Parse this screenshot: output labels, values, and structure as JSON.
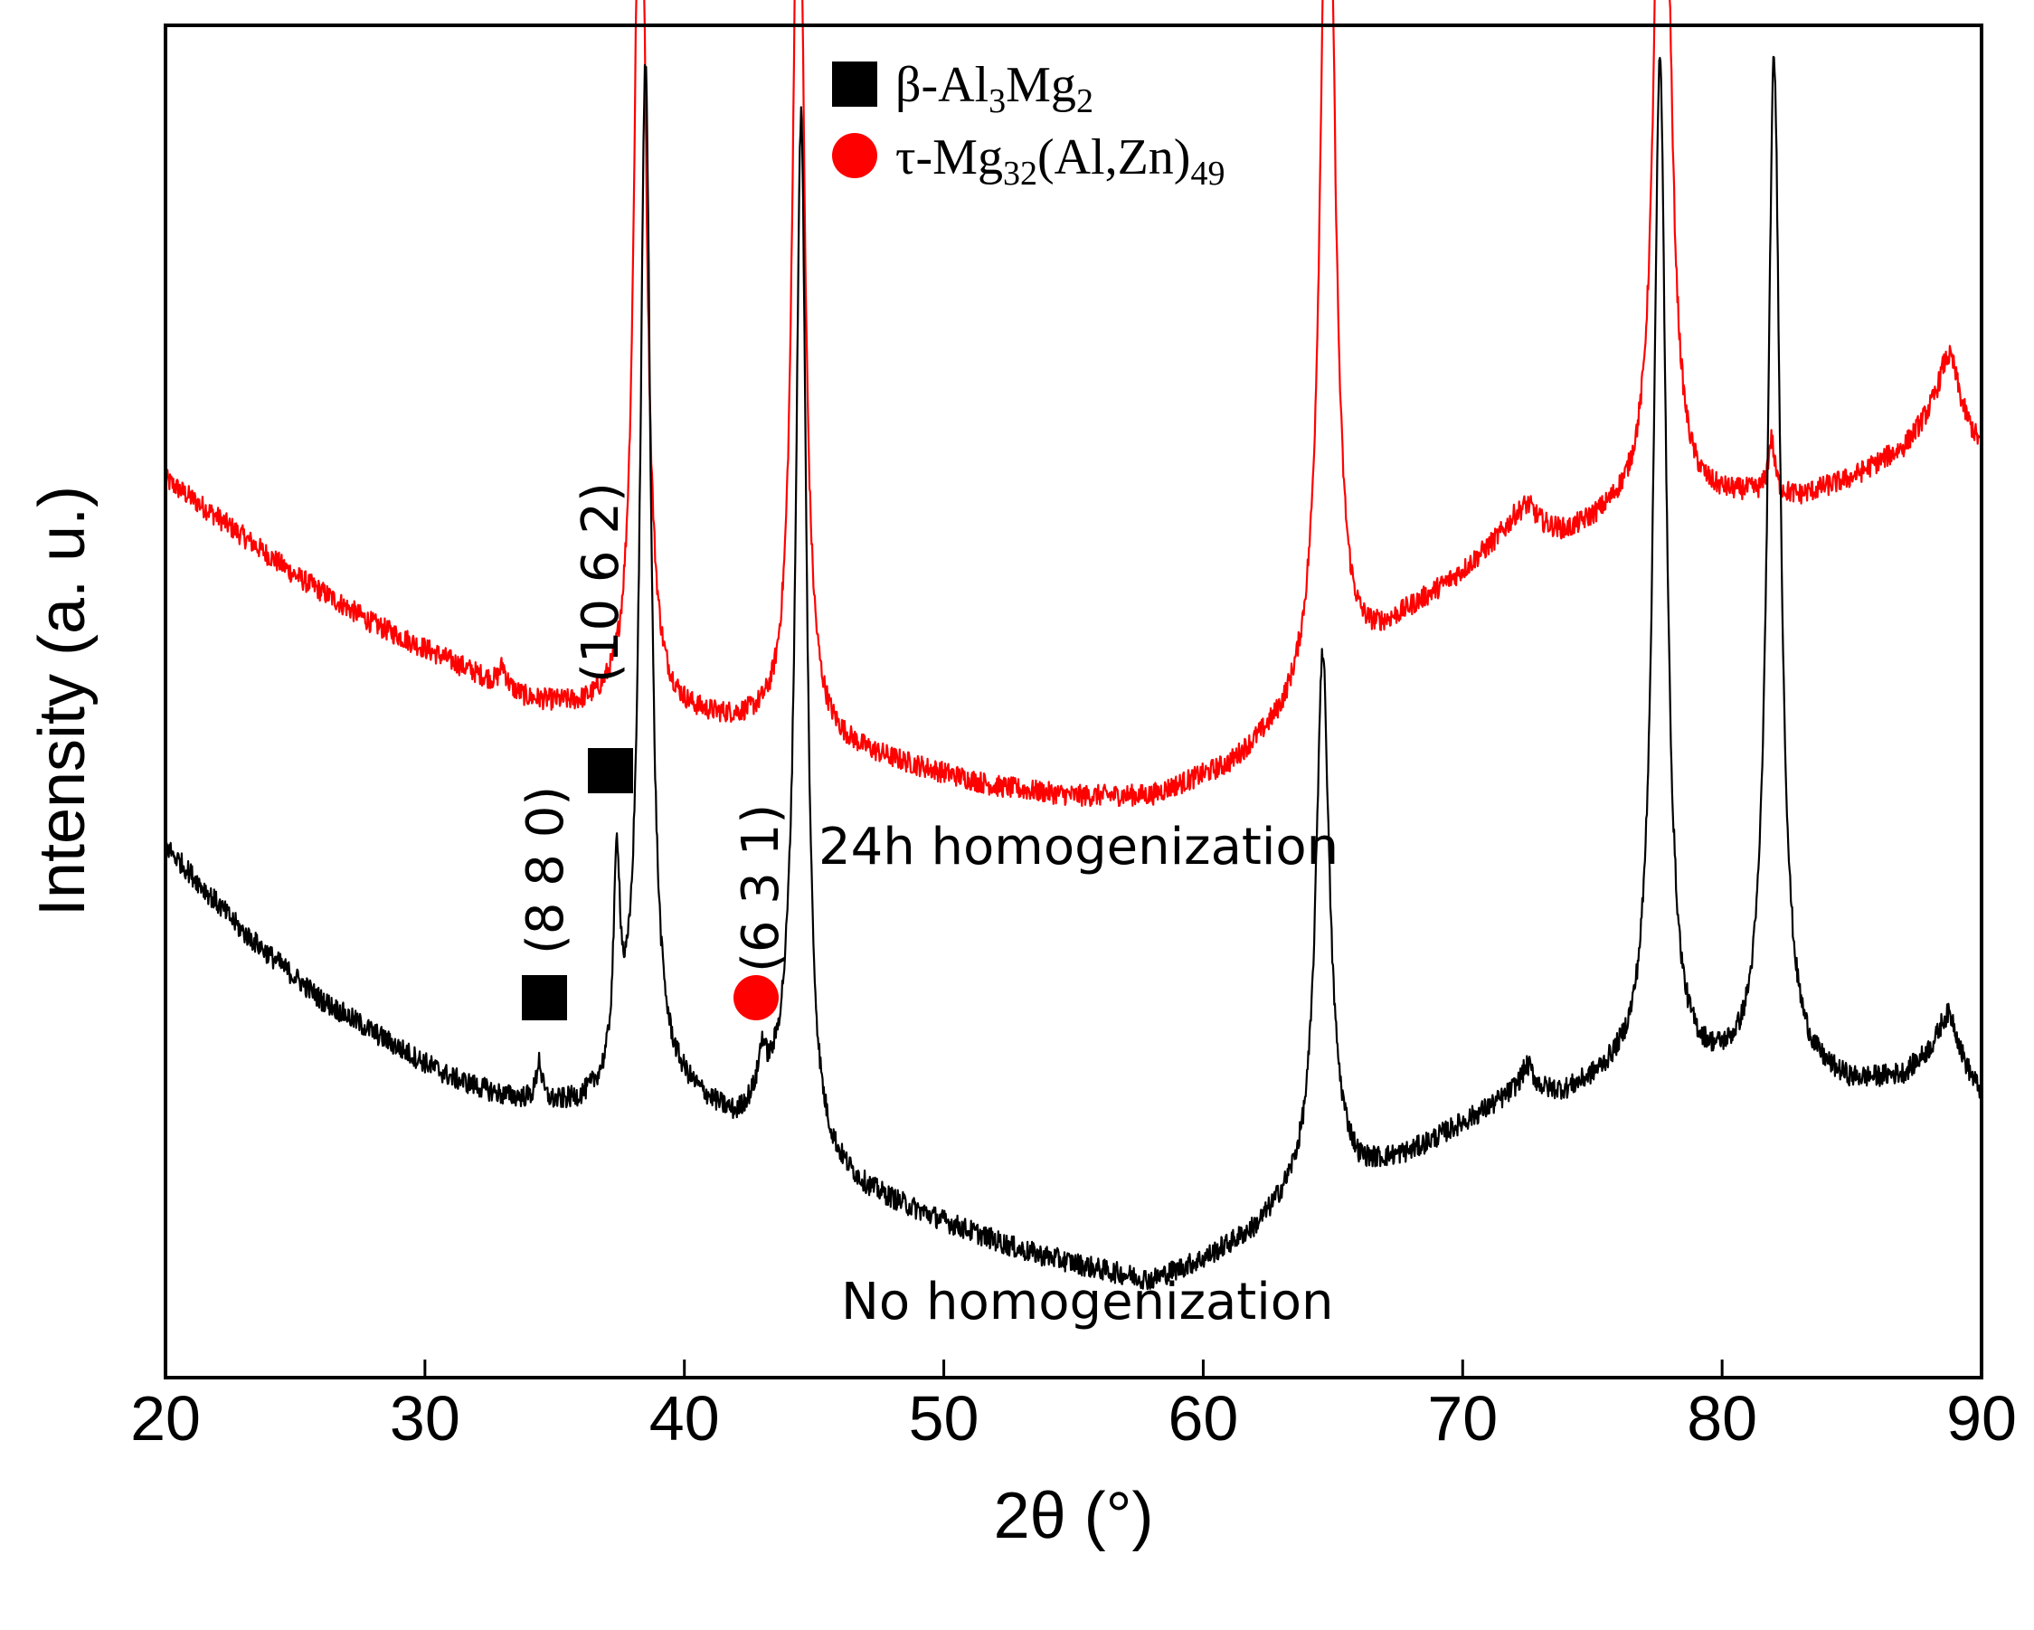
{
  "chart_data": {
    "type": "line",
    "title": "",
    "xlabel": "2θ (°)",
    "ylabel": "Intensity (a. u.)",
    "xlim": [
      20,
      90
    ],
    "ylim": [
      0,
      100
    ],
    "xticks": [
      20,
      30,
      40,
      50,
      60,
      70,
      80,
      90
    ],
    "xtick_labels": [
      "20",
      "30",
      "40",
      "50",
      "60",
      "70",
      "80",
      "90"
    ],
    "grid": false,
    "legend": [
      {
        "marker": "square",
        "color": "#000000",
        "text_parts": [
          "β-Al",
          "3",
          "Mg",
          "2"
        ]
      },
      {
        "marker": "circle",
        "color": "#ff0000",
        "text_parts": [
          "τ-Mg",
          "32",
          "(Al,Zn)",
          "49"
        ]
      }
    ],
    "series": [
      {
        "name": "24h homogenization",
        "color": "#ff0000",
        "baseline_points": [
          [
            20,
            66.4
          ],
          [
            22,
            63.6
          ],
          [
            25,
            59.3
          ],
          [
            28,
            55.7
          ],
          [
            31,
            52.9
          ],
          [
            34,
            50.0
          ],
          [
            36,
            49.3
          ],
          [
            37,
            49.3
          ],
          [
            40,
            48.6
          ],
          [
            43,
            47.9
          ],
          [
            46,
            46.4
          ],
          [
            49,
            45.0
          ],
          [
            52,
            43.6
          ],
          [
            55,
            42.9
          ],
          [
            58,
            42.9
          ],
          [
            61,
            45.0
          ],
          [
            63,
            47.9
          ],
          [
            64,
            50.0
          ],
          [
            66,
            52.9
          ],
          [
            68,
            56.4
          ],
          [
            70,
            59.3
          ],
          [
            72,
            62.9
          ],
          [
            74,
            62.1
          ],
          [
            76,
            63.6
          ],
          [
            79,
            64.3
          ],
          [
            81,
            65.0
          ],
          [
            83,
            65.0
          ],
          [
            85,
            66.4
          ],
          [
            87,
            68.6
          ],
          [
            88.5,
            72.1
          ],
          [
            90,
            68.6
          ]
        ],
        "peaks": [
          [
            33.0,
            1.5,
            0.15
          ],
          [
            38.3,
            75,
            0.25
          ],
          [
            44.4,
            75,
            0.25
          ],
          [
            64.8,
            75,
            0.3
          ],
          [
            72.5,
            1.5,
            0.4
          ],
          [
            77.7,
            75,
            0.3
          ],
          [
            81.9,
            4,
            0.15
          ],
          [
            88.8,
            4,
            0.4
          ]
        ]
      },
      {
        "name": "No homogenization",
        "color": "#000000",
        "baseline_points": [
          [
            20,
            39.3
          ],
          [
            23,
            32.9
          ],
          [
            26,
            27.9
          ],
          [
            29,
            24.3
          ],
          [
            31,
            22.1
          ],
          [
            33,
            20.7
          ],
          [
            35,
            20.0
          ],
          [
            36,
            20.0
          ],
          [
            37,
            20.7
          ],
          [
            38,
            22.1
          ],
          [
            40,
            20.7
          ],
          [
            42,
            18.6
          ],
          [
            43,
            20.0
          ],
          [
            44,
            20.7
          ],
          [
            45,
            15.7
          ],
          [
            47,
            13.6
          ],
          [
            50,
            11.4
          ],
          [
            53,
            9.3
          ],
          [
            56,
            7.9
          ],
          [
            58,
            7.1
          ],
          [
            60,
            8.6
          ],
          [
            62,
            10.7
          ],
          [
            63.5,
            13.6
          ],
          [
            65,
            16.4
          ],
          [
            66,
            15.0
          ],
          [
            68,
            16.4
          ],
          [
            70,
            18.6
          ],
          [
            72,
            20.7
          ],
          [
            74,
            20.7
          ],
          [
            76,
            22.1
          ],
          [
            78,
            22.1
          ],
          [
            79,
            22.1
          ],
          [
            81,
            22.1
          ],
          [
            83,
            22.1
          ],
          [
            85,
            21.4
          ],
          [
            87,
            22.1
          ],
          [
            88.5,
            24.3
          ],
          [
            90,
            20.7
          ]
        ],
        "peaks": [
          [
            34.4,
            3,
            0.12
          ],
          [
            37.4,
            15,
            0.15
          ],
          [
            38.5,
            75,
            0.25
          ],
          [
            43.0,
            3,
            0.15
          ],
          [
            44.5,
            75,
            0.25
          ],
          [
            64.6,
            38,
            0.3
          ],
          [
            72.5,
            2,
            0.3
          ],
          [
            77.6,
            75,
            0.3
          ],
          [
            82.0,
            75,
            0.3
          ],
          [
            88.8,
            3,
            0.4
          ]
        ]
      }
    ],
    "annotations": [
      {
        "text": "(8 8 0)",
        "x": 34.4,
        "marker": "square"
      },
      {
        "text": "(10 6 2)",
        "x": 37.0,
        "marker": "square"
      },
      {
        "text": "(6 3 1)",
        "x": 42.7,
        "marker": "circle"
      }
    ],
    "series_labels": [
      "24h homogenization",
      "No homogenization"
    ]
  }
}
